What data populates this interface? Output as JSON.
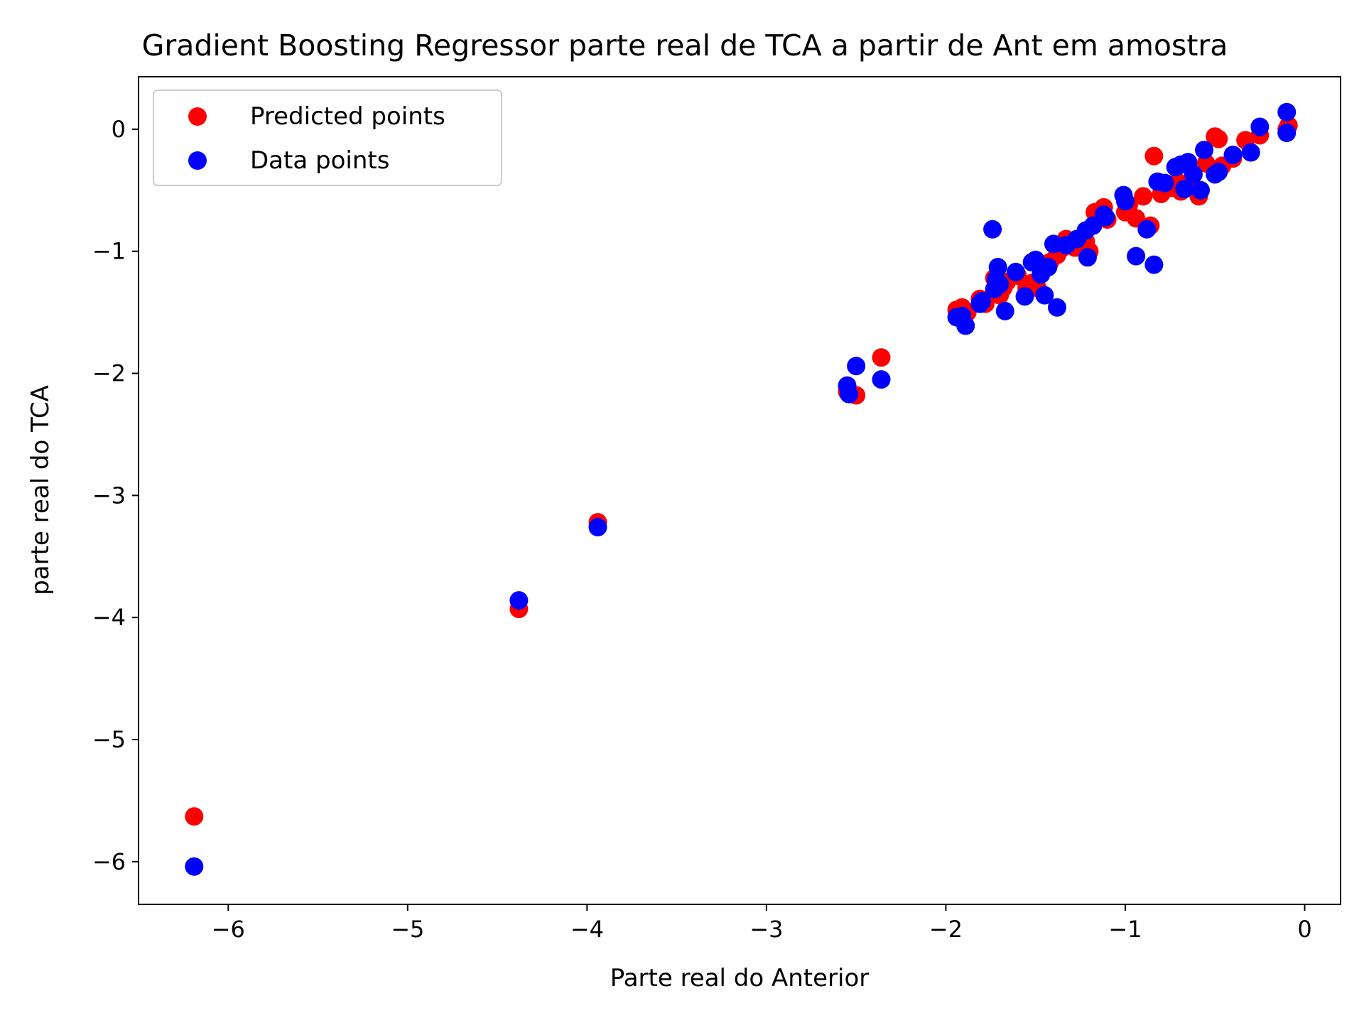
{
  "chart_data": {
    "type": "scatter",
    "title": "Gradient Boosting Regressor parte real de TCA a partir de Ant em amostra",
    "xlabel": "Parte real do Anterior",
    "ylabel": "parte real do TCA",
    "xlim": [
      -6.5,
      0.2
    ],
    "ylim": [
      -6.35,
      0.43
    ],
    "xticks": [
      -6,
      -5,
      -4,
      -3,
      -2,
      -1,
      0
    ],
    "yticks": [
      -6,
      -5,
      -4,
      -3,
      -2,
      -1,
      0
    ],
    "xtick_labels": [
      "−6",
      "−5",
      "−4",
      "−3",
      "−2",
      "−1",
      "0"
    ],
    "ytick_labels": [
      "−6",
      "−5",
      "−4",
      "−3",
      "−2",
      "−1",
      "0"
    ],
    "grid": false,
    "legend_position": "top-left",
    "series": [
      {
        "name": "Predicted points",
        "color": "#ff0000",
        "points": [
          [
            -6.19,
            -5.63
          ],
          [
            -4.38,
            -3.93
          ],
          [
            -3.94,
            -3.22
          ],
          [
            -2.55,
            -2.15
          ],
          [
            -2.5,
            -2.18
          ],
          [
            -2.36,
            -1.87
          ],
          [
            -1.94,
            -1.48
          ],
          [
            -1.91,
            -1.46
          ],
          [
            -1.88,
            -1.5
          ],
          [
            -1.81,
            -1.39
          ],
          [
            -1.78,
            -1.43
          ],
          [
            -1.73,
            -1.22
          ],
          [
            -1.7,
            -1.36
          ],
          [
            -1.68,
            -1.3
          ],
          [
            -1.66,
            -1.25
          ],
          [
            -1.6,
            -1.2
          ],
          [
            -1.55,
            -1.3
          ],
          [
            -1.52,
            -1.26
          ],
          [
            -1.49,
            -1.3
          ],
          [
            -1.46,
            -1.12
          ],
          [
            -1.42,
            -1.09
          ],
          [
            -1.38,
            -1.03
          ],
          [
            -1.35,
            -0.97
          ],
          [
            -1.33,
            -0.9
          ],
          [
            -1.28,
            -0.97
          ],
          [
            -1.22,
            -0.92
          ],
          [
            -1.2,
            -1.0
          ],
          [
            -1.17,
            -0.68
          ],
          [
            -1.12,
            -0.64
          ],
          [
            -1.1,
            -0.74
          ],
          [
            -1.0,
            -0.68
          ],
          [
            -0.98,
            -0.62
          ],
          [
            -0.94,
            -0.73
          ],
          [
            -0.9,
            -0.55
          ],
          [
            -0.86,
            -0.79
          ],
          [
            -0.84,
            -0.22
          ],
          [
            -0.8,
            -0.53
          ],
          [
            -0.78,
            -0.47
          ],
          [
            -0.74,
            -0.48
          ],
          [
            -0.71,
            -0.43
          ],
          [
            -0.69,
            -0.51
          ],
          [
            -0.66,
            -0.45
          ],
          [
            -0.62,
            -0.33
          ],
          [
            -0.59,
            -0.55
          ],
          [
            -0.55,
            -0.28
          ],
          [
            -0.5,
            -0.06
          ],
          [
            -0.48,
            -0.08
          ],
          [
            -0.46,
            -0.3
          ],
          [
            -0.4,
            -0.24
          ],
          [
            -0.33,
            -0.09
          ],
          [
            -0.3,
            -0.19
          ],
          [
            -0.25,
            -0.05
          ],
          [
            -0.1,
            0.0
          ],
          [
            -0.09,
            0.03
          ]
        ]
      },
      {
        "name": "Data points",
        "color": "#0000ff",
        "points": [
          [
            -6.19,
            -6.04
          ],
          [
            -4.38,
            -3.86
          ],
          [
            -3.94,
            -3.26
          ],
          [
            -2.55,
            -2.1
          ],
          [
            -2.54,
            -2.17
          ],
          [
            -2.5,
            -1.94
          ],
          [
            -2.36,
            -2.05
          ],
          [
            -1.94,
            -1.54
          ],
          [
            -1.91,
            -1.53
          ],
          [
            -1.89,
            -1.61
          ],
          [
            -1.81,
            -1.43
          ],
          [
            -1.8,
            -1.41
          ],
          [
            -1.74,
            -0.82
          ],
          [
            -1.73,
            -1.31
          ],
          [
            -1.72,
            -1.23
          ],
          [
            -1.71,
            -1.13
          ],
          [
            -1.7,
            -1.27
          ],
          [
            -1.67,
            -1.49
          ],
          [
            -1.61,
            -1.17
          ],
          [
            -1.56,
            -1.37
          ],
          [
            -1.52,
            -1.09
          ],
          [
            -1.5,
            -1.07
          ],
          [
            -1.47,
            -1.19
          ],
          [
            -1.45,
            -1.36
          ],
          [
            -1.43,
            -1.13
          ],
          [
            -1.4,
            -0.94
          ],
          [
            -1.38,
            -1.46
          ],
          [
            -1.33,
            -0.95
          ],
          [
            -1.27,
            -0.9
          ],
          [
            -1.22,
            -0.83
          ],
          [
            -1.21,
            -1.05
          ],
          [
            -1.18,
            -0.79
          ],
          [
            -1.12,
            -0.7
          ],
          [
            -1.11,
            -0.72
          ],
          [
            -1.01,
            -0.54
          ],
          [
            -1.0,
            -0.59
          ],
          [
            -0.94,
            -1.04
          ],
          [
            -0.88,
            -0.82
          ],
          [
            -0.84,
            -1.11
          ],
          [
            -0.82,
            -0.43
          ],
          [
            -0.78,
            -0.44
          ],
          [
            -0.72,
            -0.31
          ],
          [
            -0.69,
            -0.29
          ],
          [
            -0.67,
            -0.49
          ],
          [
            -0.65,
            -0.27
          ],
          [
            -0.62,
            -0.37
          ],
          [
            -0.58,
            -0.5
          ],
          [
            -0.56,
            -0.17
          ],
          [
            -0.5,
            -0.37
          ],
          [
            -0.48,
            -0.35
          ],
          [
            -0.4,
            -0.21
          ],
          [
            -0.3,
            -0.19
          ],
          [
            -0.25,
            0.02
          ],
          [
            -0.1,
            0.14
          ],
          [
            -0.1,
            -0.03
          ]
        ]
      }
    ]
  }
}
